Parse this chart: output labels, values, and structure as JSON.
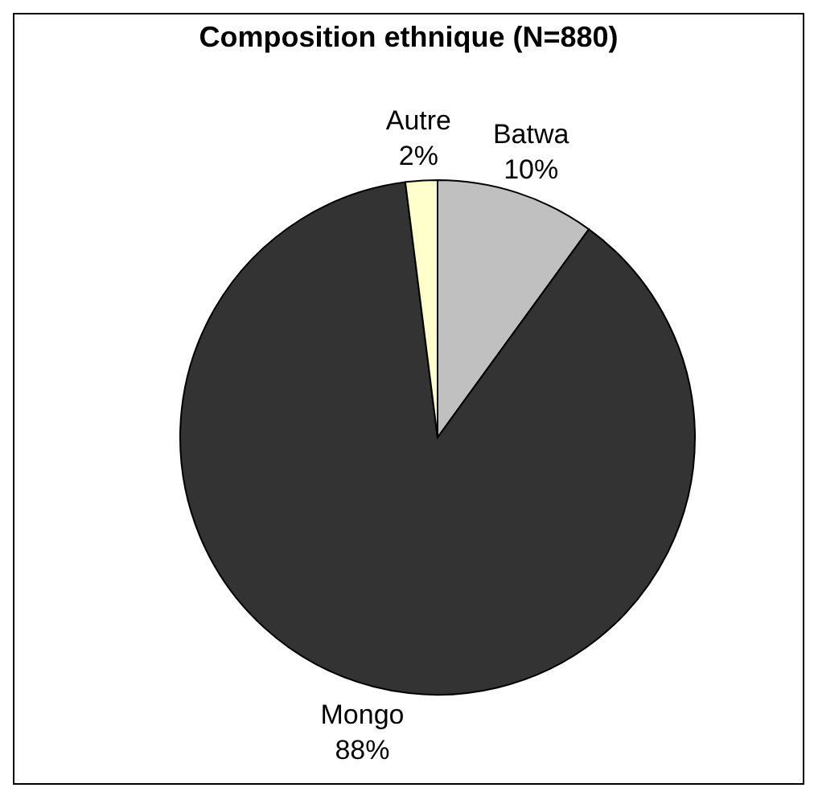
{
  "chart_data": {
    "type": "pie",
    "title": "Composition ethnique (N=880)",
    "categories": [
      "Batwa",
      "Mongo",
      "Autre"
    ],
    "values": [
      10,
      88,
      2
    ],
    "value_labels": [
      "10%",
      "88%",
      "2%"
    ],
    "colors": [
      "#c0c0c0",
      "#333333",
      "#ffffcc"
    ],
    "legend": false
  }
}
